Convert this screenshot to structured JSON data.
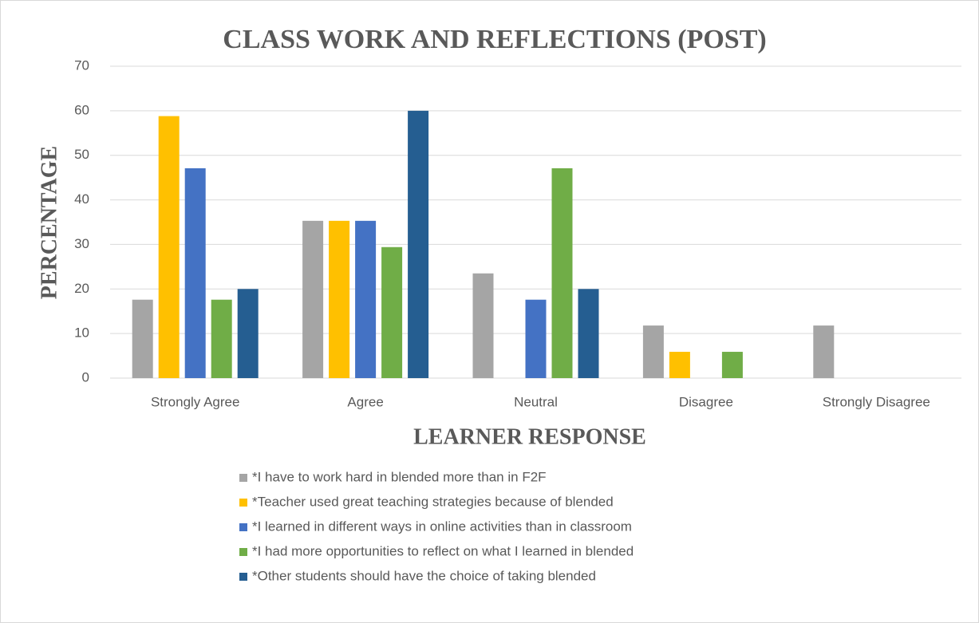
{
  "chart_data": {
    "type": "bar",
    "title": "CLASS WORK AND REFLECTIONS (POST)",
    "x_label": "LEARNER RESPONSE",
    "y_label": "PERCENTAGE",
    "categories": [
      "Strongly Agree",
      "Agree",
      "Neutral",
      "Disagree",
      "Strongly Disagree"
    ],
    "series": [
      {
        "name": "*I have to work hard in blended more than in F2F",
        "color": "#a5a5a5",
        "values": [
          17.6,
          35.3,
          23.5,
          11.8,
          11.8
        ]
      },
      {
        "name": "*Teacher used great teaching strategies because of blended",
        "color": "#ffc000",
        "values": [
          58.8,
          35.3,
          0,
          5.9,
          0
        ]
      },
      {
        "name": "*I learned in different ways in online activities than in classroom",
        "color": "#4472c4",
        "values": [
          47.1,
          35.3,
          17.6,
          0,
          0
        ]
      },
      {
        "name": "*I had more opportunities to reflect on what I learned in  blended",
        "color": "#70ad47",
        "values": [
          17.6,
          29.4,
          47.1,
          5.9,
          0
        ]
      },
      {
        "name": "*Other students should have the choice of taking blended",
        "color": "#255e91",
        "values": [
          20,
          60,
          20,
          0,
          0
        ]
      }
    ],
    "ylim": [
      0,
      70
    ],
    "yticks": [
      0,
      10,
      20,
      30,
      40,
      50,
      60,
      70
    ],
    "grid": true
  }
}
